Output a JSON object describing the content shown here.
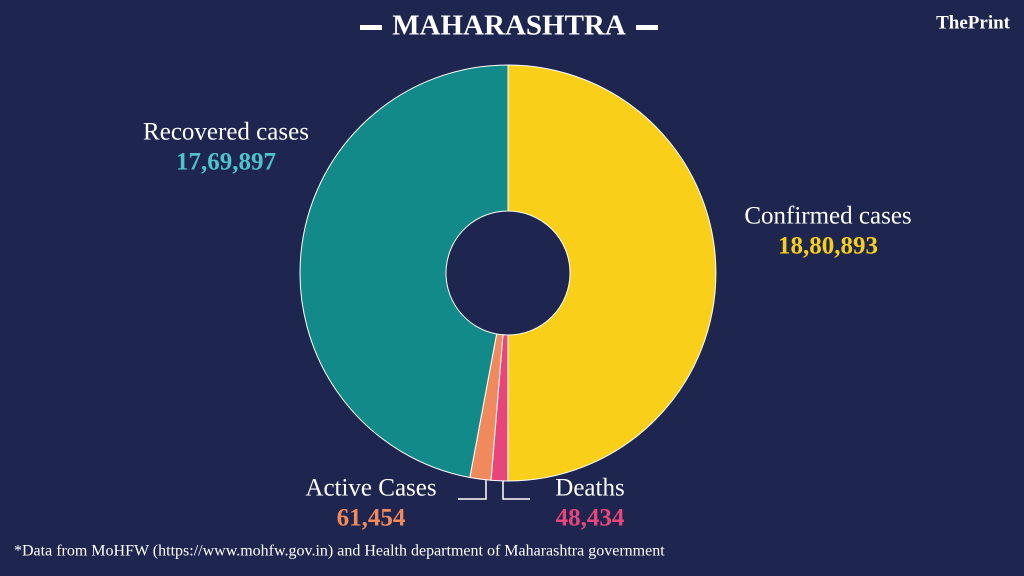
{
  "brand": "ThePrint",
  "footnote": "*Data from MoHFW (https://www.mohfw.gov.in)  and Health department of  Maharashtra government",
  "chart_data": {
    "type": "donut",
    "title": "MAHARASHTRA",
    "categories": [
      "Confirmed cases",
      "Deaths",
      "Active Cases",
      "Recovered cases"
    ],
    "values": [
      1880893,
      48434,
      61454,
      1769897
    ],
    "value_labels": [
      "18,80,893",
      "48,434",
      "61,454",
      "17,69,897"
    ],
    "colors": [
      "#f9cf1a",
      "#e8457a",
      "#f08a5d",
      "#138a8a"
    ]
  }
}
